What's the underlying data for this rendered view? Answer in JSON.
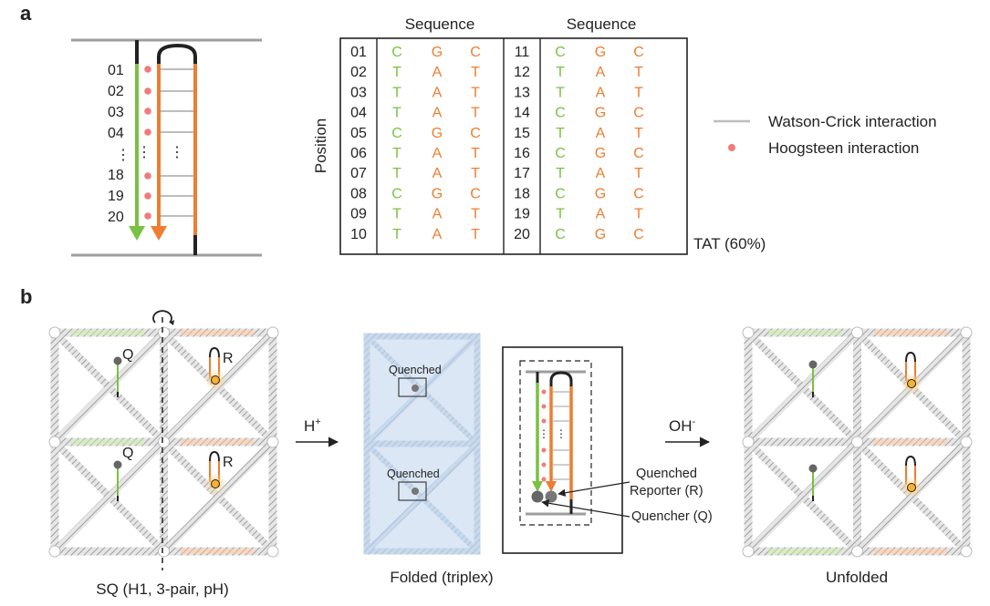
{
  "panel_a": {
    "label": "a",
    "positions_left": [
      "01",
      "02",
      "03",
      "04",
      "⋮",
      "18",
      "19",
      "20"
    ],
    "table": {
      "header_left": "Sequence",
      "header_right": "Sequence",
      "axis_label": "Position",
      "rows_left": [
        {
          "pos": "01",
          "t": "C",
          "m": "G",
          "b": "C"
        },
        {
          "pos": "02",
          "t": "T",
          "m": "A",
          "b": "T"
        },
        {
          "pos": "03",
          "t": "T",
          "m": "A",
          "b": "T"
        },
        {
          "pos": "04",
          "t": "T",
          "m": "A",
          "b": "T"
        },
        {
          "pos": "05",
          "t": "C",
          "m": "G",
          "b": "C"
        },
        {
          "pos": "06",
          "t": "T",
          "m": "A",
          "b": "T"
        },
        {
          "pos": "07",
          "t": "T",
          "m": "A",
          "b": "T"
        },
        {
          "pos": "08",
          "t": "C",
          "m": "G",
          "b": "C"
        },
        {
          "pos": "09",
          "t": "T",
          "m": "A",
          "b": "T"
        },
        {
          "pos": "10",
          "t": "T",
          "m": "A",
          "b": "T"
        }
      ],
      "rows_right": [
        {
          "pos": "11",
          "t": "C",
          "m": "G",
          "b": "C"
        },
        {
          "pos": "12",
          "t": "T",
          "m": "A",
          "b": "T"
        },
        {
          "pos": "13",
          "t": "T",
          "m": "A",
          "b": "T"
        },
        {
          "pos": "14",
          "t": "C",
          "m": "G",
          "b": "C"
        },
        {
          "pos": "15",
          "t": "T",
          "m": "A",
          "b": "T"
        },
        {
          "pos": "16",
          "t": "C",
          "m": "G",
          "b": "C"
        },
        {
          "pos": "17",
          "t": "T",
          "m": "A",
          "b": "T"
        },
        {
          "pos": "18",
          "t": "C",
          "m": "G",
          "b": "C"
        },
        {
          "pos": "19",
          "t": "T",
          "m": "A",
          "b": "T"
        },
        {
          "pos": "20",
          "t": "C",
          "m": "G",
          "b": "C"
        }
      ],
      "footnote": "TAT (60%)"
    },
    "legend": {
      "watson_crick": "Watson-Crick interaction",
      "hoogsteen": "Hoogsteen interaction"
    }
  },
  "panel_b": {
    "label": "b",
    "q_label": "Q",
    "r_label": "R",
    "caption_sq": "SQ (H1, 3-pair, pH)",
    "arrow1_label": "H",
    "arrow1_sup": "+",
    "quenched_label": "Quenched",
    "caption_folded": "Folded (triplex)",
    "callout_reporter_line1": "Quenched",
    "callout_reporter_line2": "Reporter (R)",
    "callout_quencher": "Quencher (Q)",
    "arrow2_label": "OH",
    "arrow2_sup": "-",
    "caption_unfolded": "Unfolded"
  },
  "colors": {
    "green": "#7ac143",
    "orange": "#ee7d31",
    "pink": "#f47a7a",
    "gray": "#bdbdbd",
    "dark": "#222222",
    "blue": "#dbe7f4",
    "glow": "#fbd38d"
  }
}
